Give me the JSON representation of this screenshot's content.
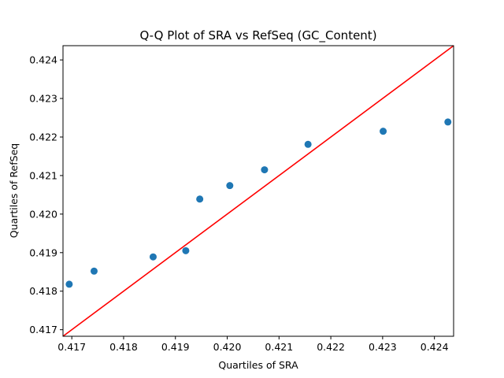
{
  "chart_data": {
    "type": "scatter",
    "title": "Q-Q Plot of SRA vs RefSeq (GC_Content)",
    "xlabel": "Quartiles of SRA",
    "ylabel": "Quartiles of RefSeq",
    "xlim": [
      0.41683,
      0.42437
    ],
    "ylim": [
      0.41683,
      0.42437
    ],
    "xticks": [
      "0.417",
      "0.418",
      "0.419",
      "0.420",
      "0.421",
      "0.422",
      "0.423",
      "0.424"
    ],
    "yticks": [
      "0.417",
      "0.418",
      "0.419",
      "0.420",
      "0.421",
      "0.422",
      "0.423",
      "0.424"
    ],
    "xtick_values": [
      0.417,
      0.418,
      0.419,
      0.42,
      0.421,
      0.422,
      0.423,
      0.424
    ],
    "ytick_values": [
      0.417,
      0.418,
      0.419,
      0.42,
      0.421,
      0.422,
      0.423,
      0.424
    ],
    "grid": false,
    "points": {
      "x": [
        0.41695,
        0.41743,
        0.41857,
        0.4192,
        0.41947,
        0.42005,
        0.42072,
        0.42156,
        0.42301,
        0.42426
      ],
      "y": [
        0.41818,
        0.41852,
        0.41889,
        0.41905,
        0.42039,
        0.42074,
        0.42115,
        0.42181,
        0.42215,
        0.42239
      ],
      "color": "#1f77b4"
    },
    "reference_line": {
      "from": [
        0.41683,
        0.41683
      ],
      "to": [
        0.42437,
        0.42437
      ],
      "color": "#ff0000"
    }
  }
}
